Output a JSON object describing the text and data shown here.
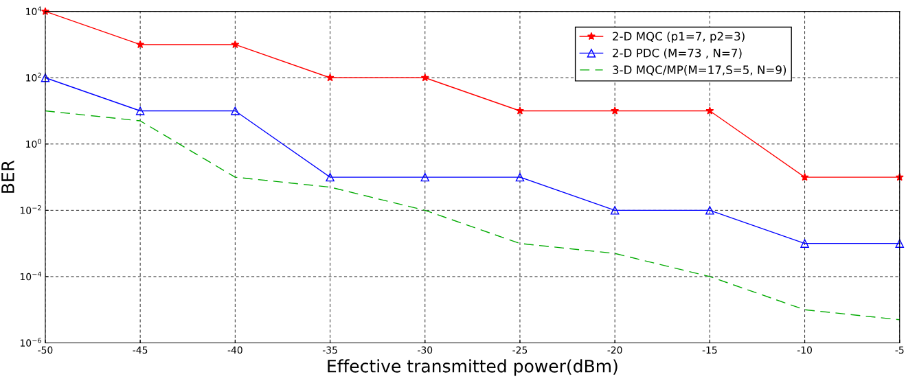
{
  "chart_data": {
    "type": "line",
    "xlabel": "Effective transmitted power(dBm)",
    "ylabel": "BER",
    "log": "y",
    "x": [
      -50,
      -45,
      -40,
      -35,
      -30,
      -25,
      -20,
      -15,
      -10,
      -5
    ],
    "series": [
      {
        "name": "2-D MQC (p1=7, p2=3)",
        "color": "#ff0000",
        "marker": "star",
        "line_style": "solid",
        "values": [
          10000,
          1000,
          1000,
          100,
          100,
          10,
          10,
          10,
          0.1,
          0.1
        ]
      },
      {
        "name": "2-D PDC (M=73 , N=7)",
        "color": "#0000ff",
        "marker": "triangle",
        "line_style": "solid",
        "values": [
          100,
          10,
          10,
          0.1,
          0.1,
          0.1,
          0.01,
          0.01,
          0.001,
          0.001
        ]
      },
      {
        "name": "3-D MQC/MP(M=17,S=5, N=9)",
        "color": "#00aa00",
        "marker": "none",
        "line_style": "dashed",
        "values": [
          10,
          5,
          0.1,
          0.05,
          0.01,
          0.001,
          0.0005,
          0.0001,
          1e-05,
          5e-06
        ]
      }
    ],
    "xlim": [
      -50,
      -5
    ],
    "xticks": [
      -50,
      -45,
      -40,
      -35,
      -30,
      -25,
      -20,
      -15,
      -10,
      -5
    ],
    "ylim": [
      1e-06,
      10000
    ],
    "yticks": [
      {
        "value": 1e-06,
        "label": "10$^{−6}$"
      },
      {
        "value": 0.0001,
        "label": "10$^{−4}$"
      },
      {
        "value": 0.01,
        "label": "10$^{−2}$"
      },
      {
        "value": 1,
        "label": "10$^{0}$"
      },
      {
        "value": 100,
        "label": "10$^{2}$"
      },
      {
        "value": 10000,
        "label": "10$^{4}$"
      }
    ],
    "grid": true,
    "legend": "top right"
  }
}
